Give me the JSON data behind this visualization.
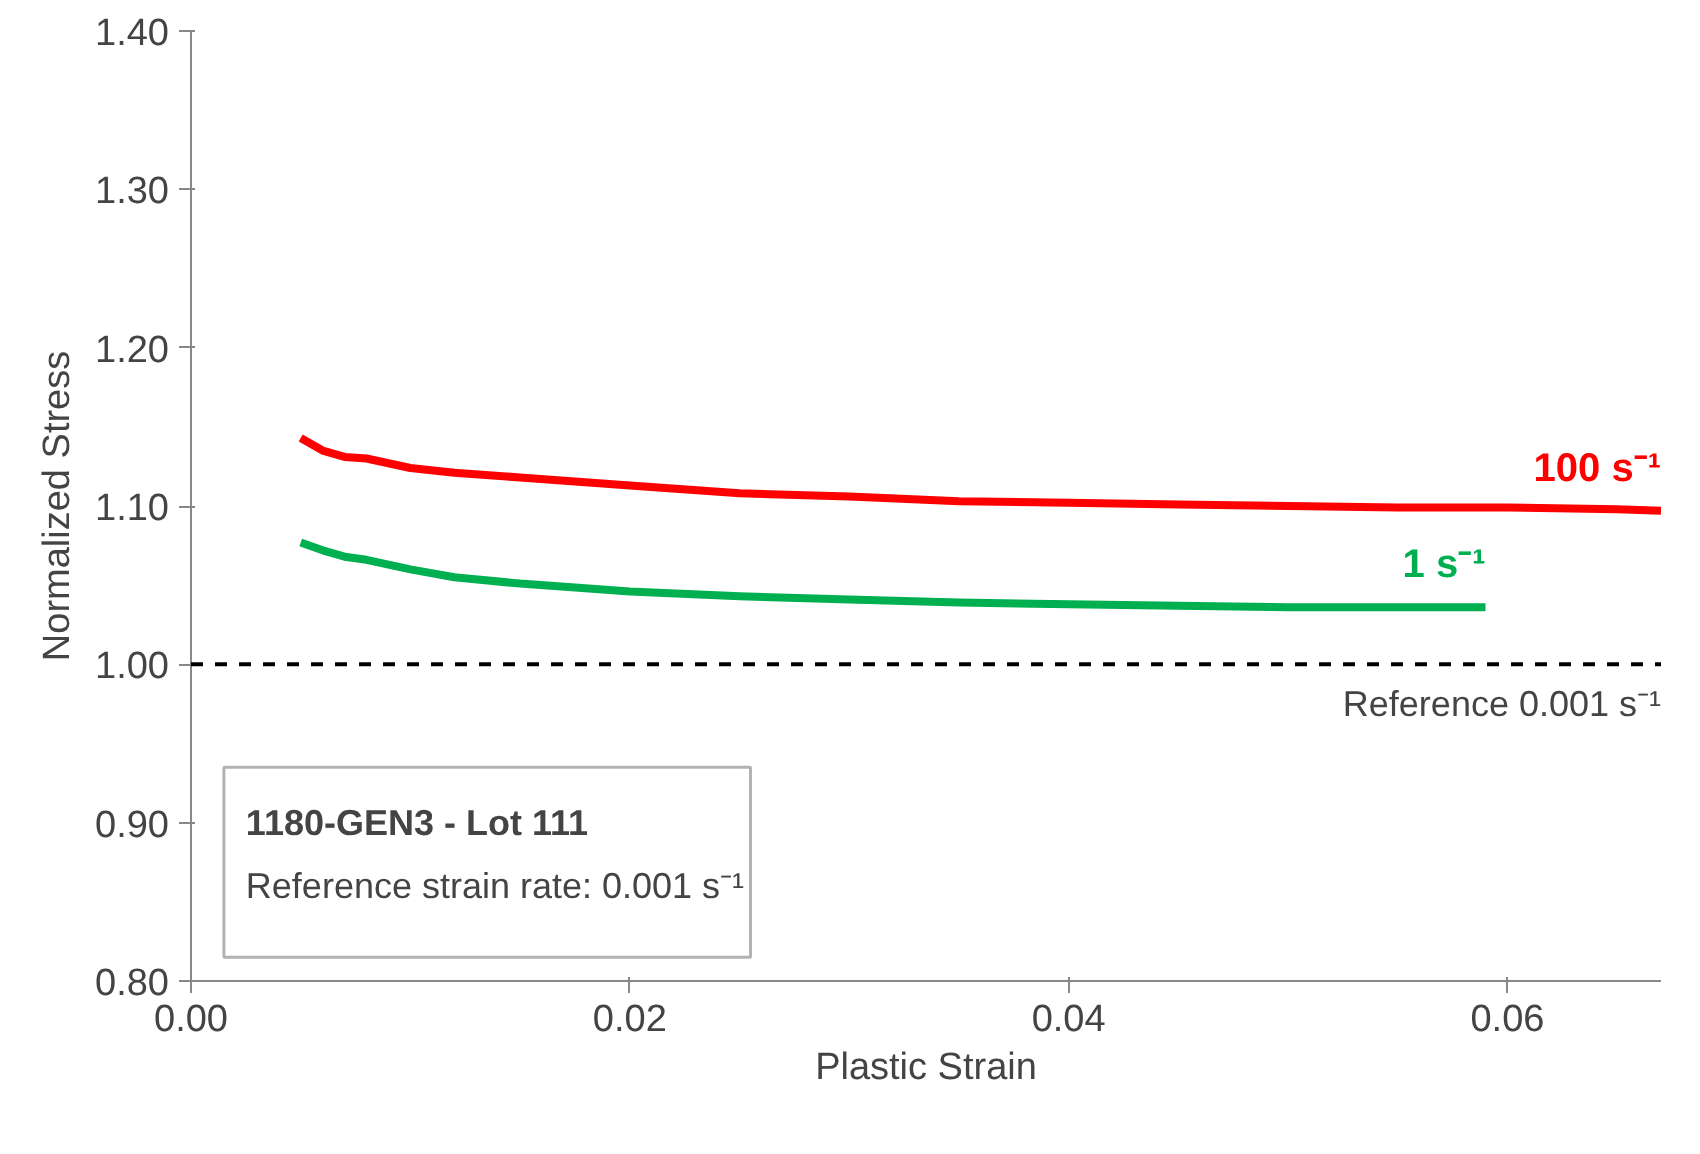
{
  "chart_data": {
    "type": "line",
    "xlabel": "Plastic Strain",
    "ylabel": "Normalized Stress",
    "xlim": [
      0,
      0.067
    ],
    "ylim": [
      0.8,
      1.4
    ],
    "xticks": [
      {
        "value": 0,
        "label": "0.00"
      },
      {
        "value": 0.02,
        "label": "0.02"
      },
      {
        "value": 0.04,
        "label": "0.04"
      },
      {
        "value": 0.06,
        "label": "0.06"
      }
    ],
    "yticks": [
      {
        "value": 0.8,
        "label": "0.80"
      },
      {
        "value": 0.9,
        "label": "0.90"
      },
      {
        "value": 1.0,
        "label": "1.00"
      },
      {
        "value": 1.1,
        "label": "1.10"
      },
      {
        "value": 1.2,
        "label": "1.20"
      },
      {
        "value": 1.3,
        "label": "1.30"
      },
      {
        "value": 1.4,
        "label": "1.40"
      }
    ],
    "grid": false,
    "marker": "none",
    "line_style": "solid",
    "series": [
      {
        "name": "100 s⁻¹",
        "color": "#ff0000",
        "x": [
          0.005,
          0.006,
          0.007,
          0.008,
          0.01,
          0.012,
          0.015,
          0.02,
          0.025,
          0.03,
          0.035,
          0.04,
          0.045,
          0.05,
          0.055,
          0.06,
          0.065,
          0.067
        ],
        "values": [
          1.143,
          1.135,
          1.131,
          1.13,
          1.124,
          1.121,
          1.118,
          1.113,
          1.108,
          1.106,
          1.103,
          1.102,
          1.101,
          1.1,
          1.099,
          1.099,
          1.098,
          1.097
        ]
      },
      {
        "name": "1 s⁻¹",
        "color": "#00b050",
        "x": [
          0.005,
          0.006,
          0.007,
          0.008,
          0.01,
          0.012,
          0.015,
          0.02,
          0.025,
          0.03,
          0.035,
          0.04,
          0.045,
          0.05,
          0.055,
          0.059
        ],
        "values": [
          1.077,
          1.072,
          1.068,
          1.066,
          1.06,
          1.055,
          1.051,
          1.046,
          1.043,
          1.041,
          1.039,
          1.038,
          1.037,
          1.036,
          1.036,
          1.036
        ]
      }
    ],
    "ref_lines": [
      {
        "axis": "y",
        "value": 1.0,
        "label": "Reference 0.001 s⁻¹",
        "color": "#000000",
        "line_style": "dashed"
      }
    ],
    "annotations": [
      "1180-GEN3 - Lot 111",
      "Reference strain rate: 0.001 s⁻¹"
    ]
  }
}
